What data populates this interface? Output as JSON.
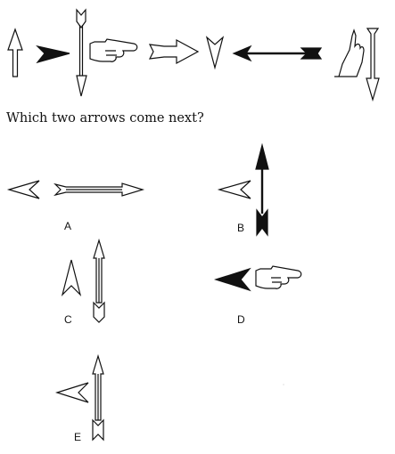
{
  "question": "Which two arrows come next?",
  "options": [
    {
      "label": "A"
    },
    {
      "label": "B"
    },
    {
      "label": "C"
    },
    {
      "label": "D"
    },
    {
      "label": "E"
    }
  ]
}
